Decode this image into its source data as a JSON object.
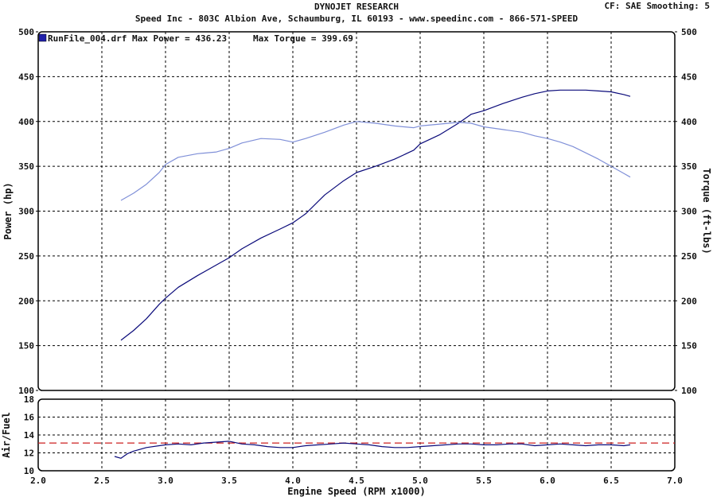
{
  "header": {
    "title": "DYNOJET RESEARCH",
    "subtitle": "Speed Inc - 803C Albion Ave, Schaumburg, IL 60193 - www.speedinc.com - 866-571-SPEED",
    "corner": "CF: SAE  Smoothing: 5"
  },
  "chart_data": [
    {
      "type": "line",
      "xlabel": "Engine Speed (RPM x1000)",
      "ylabel": "Power (hp)",
      "y2label": "Torque (ft-lbs)",
      "xlim": [
        2.0,
        7.0
      ],
      "ylim": [
        100,
        500
      ],
      "y2lim": [
        100,
        500
      ],
      "xticks": [
        "2.0",
        "2.5",
        "3.0",
        "3.5",
        "4.0",
        "4.5",
        "5.0",
        "5.5",
        "6.0",
        "6.5",
        "7.0"
      ],
      "yticks": [
        "100",
        "150",
        "200",
        "250",
        "300",
        "350",
        "400",
        "450",
        "500"
      ],
      "y2ticks": [
        "100",
        "150",
        "200",
        "250",
        "300",
        "350",
        "400",
        "450",
        "500"
      ],
      "grid": true,
      "legend": {
        "label": "RunFile_004.drf Max Power = 436.23",
        "extra": "Max Torque = 399.69",
        "position": "top-left",
        "color": "#2020aa"
      },
      "series": [
        {
          "name": "Power",
          "color": "#0a0a7a",
          "x": [
            2.65,
            2.75,
            2.85,
            2.95,
            3.0,
            3.1,
            3.25,
            3.4,
            3.5,
            3.6,
            3.75,
            3.9,
            4.0,
            4.1,
            4.25,
            4.4,
            4.5,
            4.65,
            4.8,
            4.95,
            5.0,
            5.15,
            5.3,
            5.4,
            5.5,
            5.65,
            5.8,
            5.9,
            6.0,
            6.1,
            6.2,
            6.3,
            6.4,
            6.5,
            6.6,
            6.65
          ],
          "y": [
            156,
            167,
            180,
            196,
            203,
            215,
            228,
            240,
            248,
            258,
            270,
            280,
            287,
            297,
            318,
            334,
            343,
            350,
            358,
            368,
            375,
            385,
            398,
            408,
            412,
            420,
            427,
            431,
            434,
            435,
            435,
            435,
            434,
            433,
            430,
            428
          ]
        },
        {
          "name": "Torque",
          "color": "#8090d8",
          "x": [
            2.65,
            2.75,
            2.85,
            2.95,
            3.0,
            3.1,
            3.25,
            3.4,
            3.5,
            3.6,
            3.75,
            3.9,
            4.0,
            4.1,
            4.25,
            4.4,
            4.5,
            4.65,
            4.8,
            4.95,
            5.0,
            5.15,
            5.3,
            5.4,
            5.5,
            5.65,
            5.8,
            5.9,
            6.0,
            6.1,
            6.2,
            6.3,
            6.4,
            6.5,
            6.6,
            6.65
          ],
          "y": [
            312,
            320,
            330,
            343,
            352,
            360,
            364,
            366,
            370,
            376,
            381,
            380,
            377,
            381,
            388,
            396,
            400,
            398,
            395,
            393,
            395,
            397,
            399,
            398,
            394,
            391,
            388,
            384,
            381,
            377,
            372,
            365,
            358,
            350,
            342,
            338
          ]
        }
      ]
    },
    {
      "type": "line",
      "ylabel": "Air/Fuel",
      "xlim": [
        2.0,
        7.0
      ],
      "ylim": [
        10,
        18
      ],
      "yticks": [
        "10",
        "12",
        "14",
        "16",
        "18"
      ],
      "grid": true,
      "reference": {
        "value": 13.1,
        "color": "#cc2020",
        "dashed": true
      },
      "series": [
        {
          "name": "Air/Fuel",
          "color": "#0a0a7a",
          "x": [
            2.6,
            2.65,
            2.7,
            2.75,
            2.85,
            3.0,
            3.1,
            3.2,
            3.3,
            3.4,
            3.5,
            3.6,
            3.7,
            3.8,
            3.9,
            4.0,
            4.1,
            4.2,
            4.3,
            4.4,
            4.5,
            4.6,
            4.7,
            4.8,
            4.9,
            5.0,
            5.1,
            5.2,
            5.3,
            5.4,
            5.5,
            5.6,
            5.7,
            5.8,
            5.9,
            6.0,
            6.1,
            6.2,
            6.3,
            6.4,
            6.5,
            6.6,
            6.65
          ],
          "y": [
            11.6,
            11.4,
            11.9,
            12.2,
            12.6,
            12.9,
            13.0,
            12.9,
            13.1,
            13.2,
            13.3,
            13.0,
            12.9,
            12.7,
            12.6,
            12.6,
            12.8,
            12.9,
            13.0,
            13.1,
            13.0,
            12.9,
            12.7,
            12.6,
            12.6,
            12.7,
            12.8,
            12.9,
            13.0,
            13.0,
            12.9,
            12.9,
            13.0,
            13.0,
            12.8,
            12.9,
            13.0,
            12.9,
            12.8,
            12.9,
            12.9,
            12.8,
            12.9
          ]
        }
      ]
    }
  ]
}
